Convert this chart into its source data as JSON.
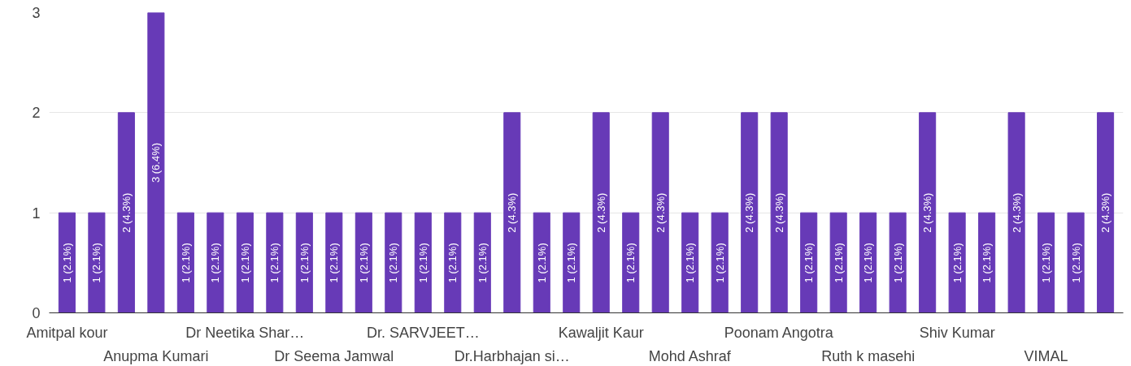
{
  "chart_data": {
    "type": "bar",
    "categories": [
      "Amitpal kour",
      null,
      null,
      "Anupma Kumari",
      null,
      null,
      "Dr Neetika Shar…",
      null,
      null,
      "Dr Seema Jamwal",
      null,
      null,
      "Dr. SARVJEET…",
      null,
      null,
      "Dr.Harbhajan si…",
      null,
      null,
      "Kawaljit Kaur",
      null,
      null,
      "Mohd Ashraf",
      null,
      null,
      "Poonam Angotra",
      null,
      null,
      "Ruth k masehi",
      null,
      null,
      "Shiv Kumar",
      null,
      null,
      "VIMAL",
      null,
      null
    ],
    "values": [
      1,
      1,
      2,
      3,
      1,
      1,
      1,
      1,
      1,
      1,
      1,
      1,
      1,
      1,
      1,
      2,
      1,
      1,
      2,
      1,
      2,
      1,
      1,
      2,
      2,
      1,
      1,
      1,
      1,
      2,
      1,
      1,
      2,
      1,
      1,
      2
    ],
    "value_labels": [
      "1 (2.1%)",
      "1 (2.1%)",
      "2 (4.3%)",
      "3 (6.4%)",
      "1 (2.1%)",
      "1 (2.1%)",
      "1 (2.1%)",
      "1 (2.1%)",
      "1 (2.1%)",
      "1 (2.1%)",
      "1 (2.1%)",
      "1 (2.1%)",
      "1 (2.1%)",
      "1 (2.1%)",
      "1 (2.1%)",
      "2 (4.3%)",
      "1 (2.1%)",
      "1 (2.1%)",
      "2 (4.3%)",
      "1 (2.1%)",
      "2 (4.3%)",
      "1 (2.1%)",
      "1 (2.1%)",
      "2 (4.3%)",
      "2 (4.3%)",
      "1 (2.1%)",
      "1 (2.1%)",
      "1 (2.1%)",
      "1 (2.1%)",
      "2 (4.3%)",
      "1 (2.1%)",
      "1 (2.1%)",
      "2 (4.3%)",
      "1 (2.1%)",
      "1 (2.1%)",
      "2 (4.3%)"
    ],
    "color": "#673ab7",
    "ylim": [
      0,
      3
    ],
    "yticks": [
      0,
      1,
      2,
      3
    ],
    "grid": "y"
  }
}
